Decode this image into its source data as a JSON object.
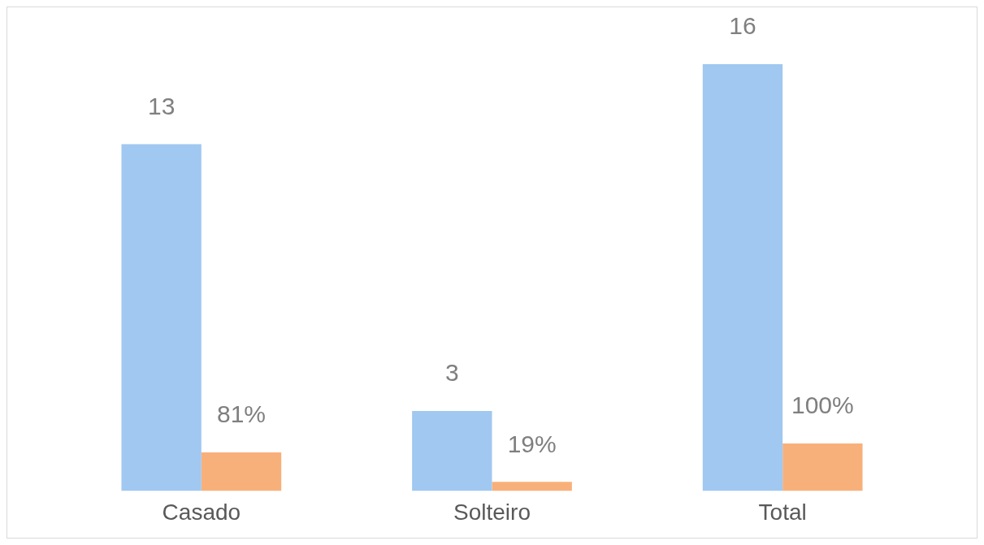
{
  "chart_data": {
    "type": "bar",
    "categories": [
      "Casado",
      "Solteiro",
      "Total"
    ],
    "series": [
      {
        "color": "#a0c8f0",
        "values": [
          13,
          3,
          16
        ],
        "value_labels": [
          "13",
          "3",
          "16"
        ]
      },
      {
        "color": "#f8b07a",
        "values": [
          81,
          19,
          100
        ],
        "value_labels": [
          "81%",
          "19%",
          "100%"
        ],
        "axis": "y2"
      }
    ],
    "tick_labels": "x",
    "grid": false,
    "legend": false
  }
}
